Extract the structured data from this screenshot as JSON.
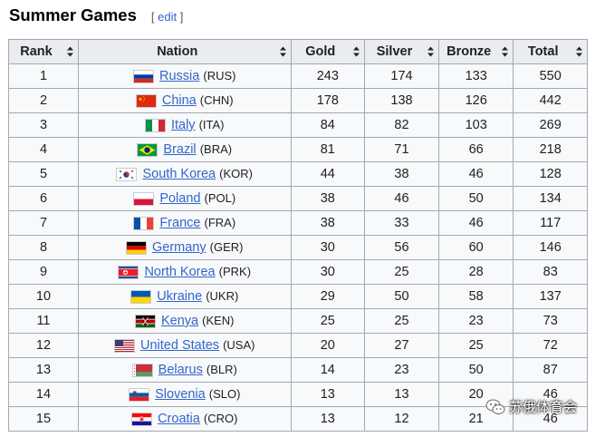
{
  "heading": "Summer Games",
  "edit_open": "[ ",
  "edit_label": "edit",
  "edit_close": " ]",
  "columns": {
    "rank": "Rank",
    "nation": "Nation",
    "gold": "Gold",
    "silver": "Silver",
    "bronze": "Bronze",
    "total": "Total"
  },
  "colors": {
    "gold": "#f9d400",
    "silver": "#cbcbcb",
    "bronze": "#d2a068",
    "link": "#3366cc"
  },
  "rows": [
    {
      "rank": "1",
      "name": "Russia",
      "code": "(RUS)",
      "flag": "russia",
      "gold": "243",
      "silver": "174",
      "bronze": "133",
      "total": "550"
    },
    {
      "rank": "2",
      "name": "China",
      "code": "(CHN)",
      "flag": "china",
      "gold": "178",
      "silver": "138",
      "bronze": "126",
      "total": "442"
    },
    {
      "rank": "3",
      "name": "Italy",
      "code": "(ITA)",
      "flag": "italy",
      "gold": "84",
      "silver": "82",
      "bronze": "103",
      "total": "269"
    },
    {
      "rank": "4",
      "name": "Brazil",
      "code": "(BRA)",
      "flag": "brazil",
      "gold": "81",
      "silver": "71",
      "bronze": "66",
      "total": "218"
    },
    {
      "rank": "5",
      "name": "South Korea",
      "code": "(KOR)",
      "flag": "south-korea",
      "gold": "44",
      "silver": "38",
      "bronze": "46",
      "total": "128"
    },
    {
      "rank": "6",
      "name": "Poland",
      "code": "(POL)",
      "flag": "poland",
      "gold": "38",
      "silver": "46",
      "bronze": "50",
      "total": "134"
    },
    {
      "rank": "7",
      "name": "France",
      "code": "(FRA)",
      "flag": "france",
      "gold": "38",
      "silver": "33",
      "bronze": "46",
      "total": "117"
    },
    {
      "rank": "8",
      "name": "Germany",
      "code": "(GER)",
      "flag": "germany",
      "gold": "30",
      "silver": "56",
      "bronze": "60",
      "total": "146"
    },
    {
      "rank": "9",
      "name": "North Korea",
      "code": "(PRK)",
      "flag": "north-korea",
      "gold": "30",
      "silver": "25",
      "bronze": "28",
      "total": "83"
    },
    {
      "rank": "10",
      "name": "Ukraine",
      "code": "(UKR)",
      "flag": "ukraine",
      "gold": "29",
      "silver": "50",
      "bronze": "58",
      "total": "137"
    },
    {
      "rank": "11",
      "name": "Kenya",
      "code": "(KEN)",
      "flag": "kenya",
      "gold": "25",
      "silver": "25",
      "bronze": "23",
      "total": "73"
    },
    {
      "rank": "12",
      "name": "United States",
      "code": "(USA)",
      "flag": "usa",
      "gold": "20",
      "silver": "27",
      "bronze": "25",
      "total": "72"
    },
    {
      "rank": "13",
      "name": "Belarus",
      "code": "(BLR)",
      "flag": "belarus",
      "gold": "14",
      "silver": "23",
      "bronze": "50",
      "total": "87"
    },
    {
      "rank": "14",
      "name": "Slovenia",
      "code": "(SLO)",
      "flag": "slovenia",
      "gold": "13",
      "silver": "13",
      "bronze": "20",
      "total": "46"
    },
    {
      "rank": "15",
      "name": "Croatia",
      "code": "(CRO)",
      "flag": "croatia",
      "gold": "13",
      "silver": "12",
      "bronze": "21",
      "total": "46"
    }
  ],
  "watermark": "苏俄体育会",
  "icons": {
    "sort": "sort-arrows-icon",
    "watermark": "wechat-icon"
  }
}
